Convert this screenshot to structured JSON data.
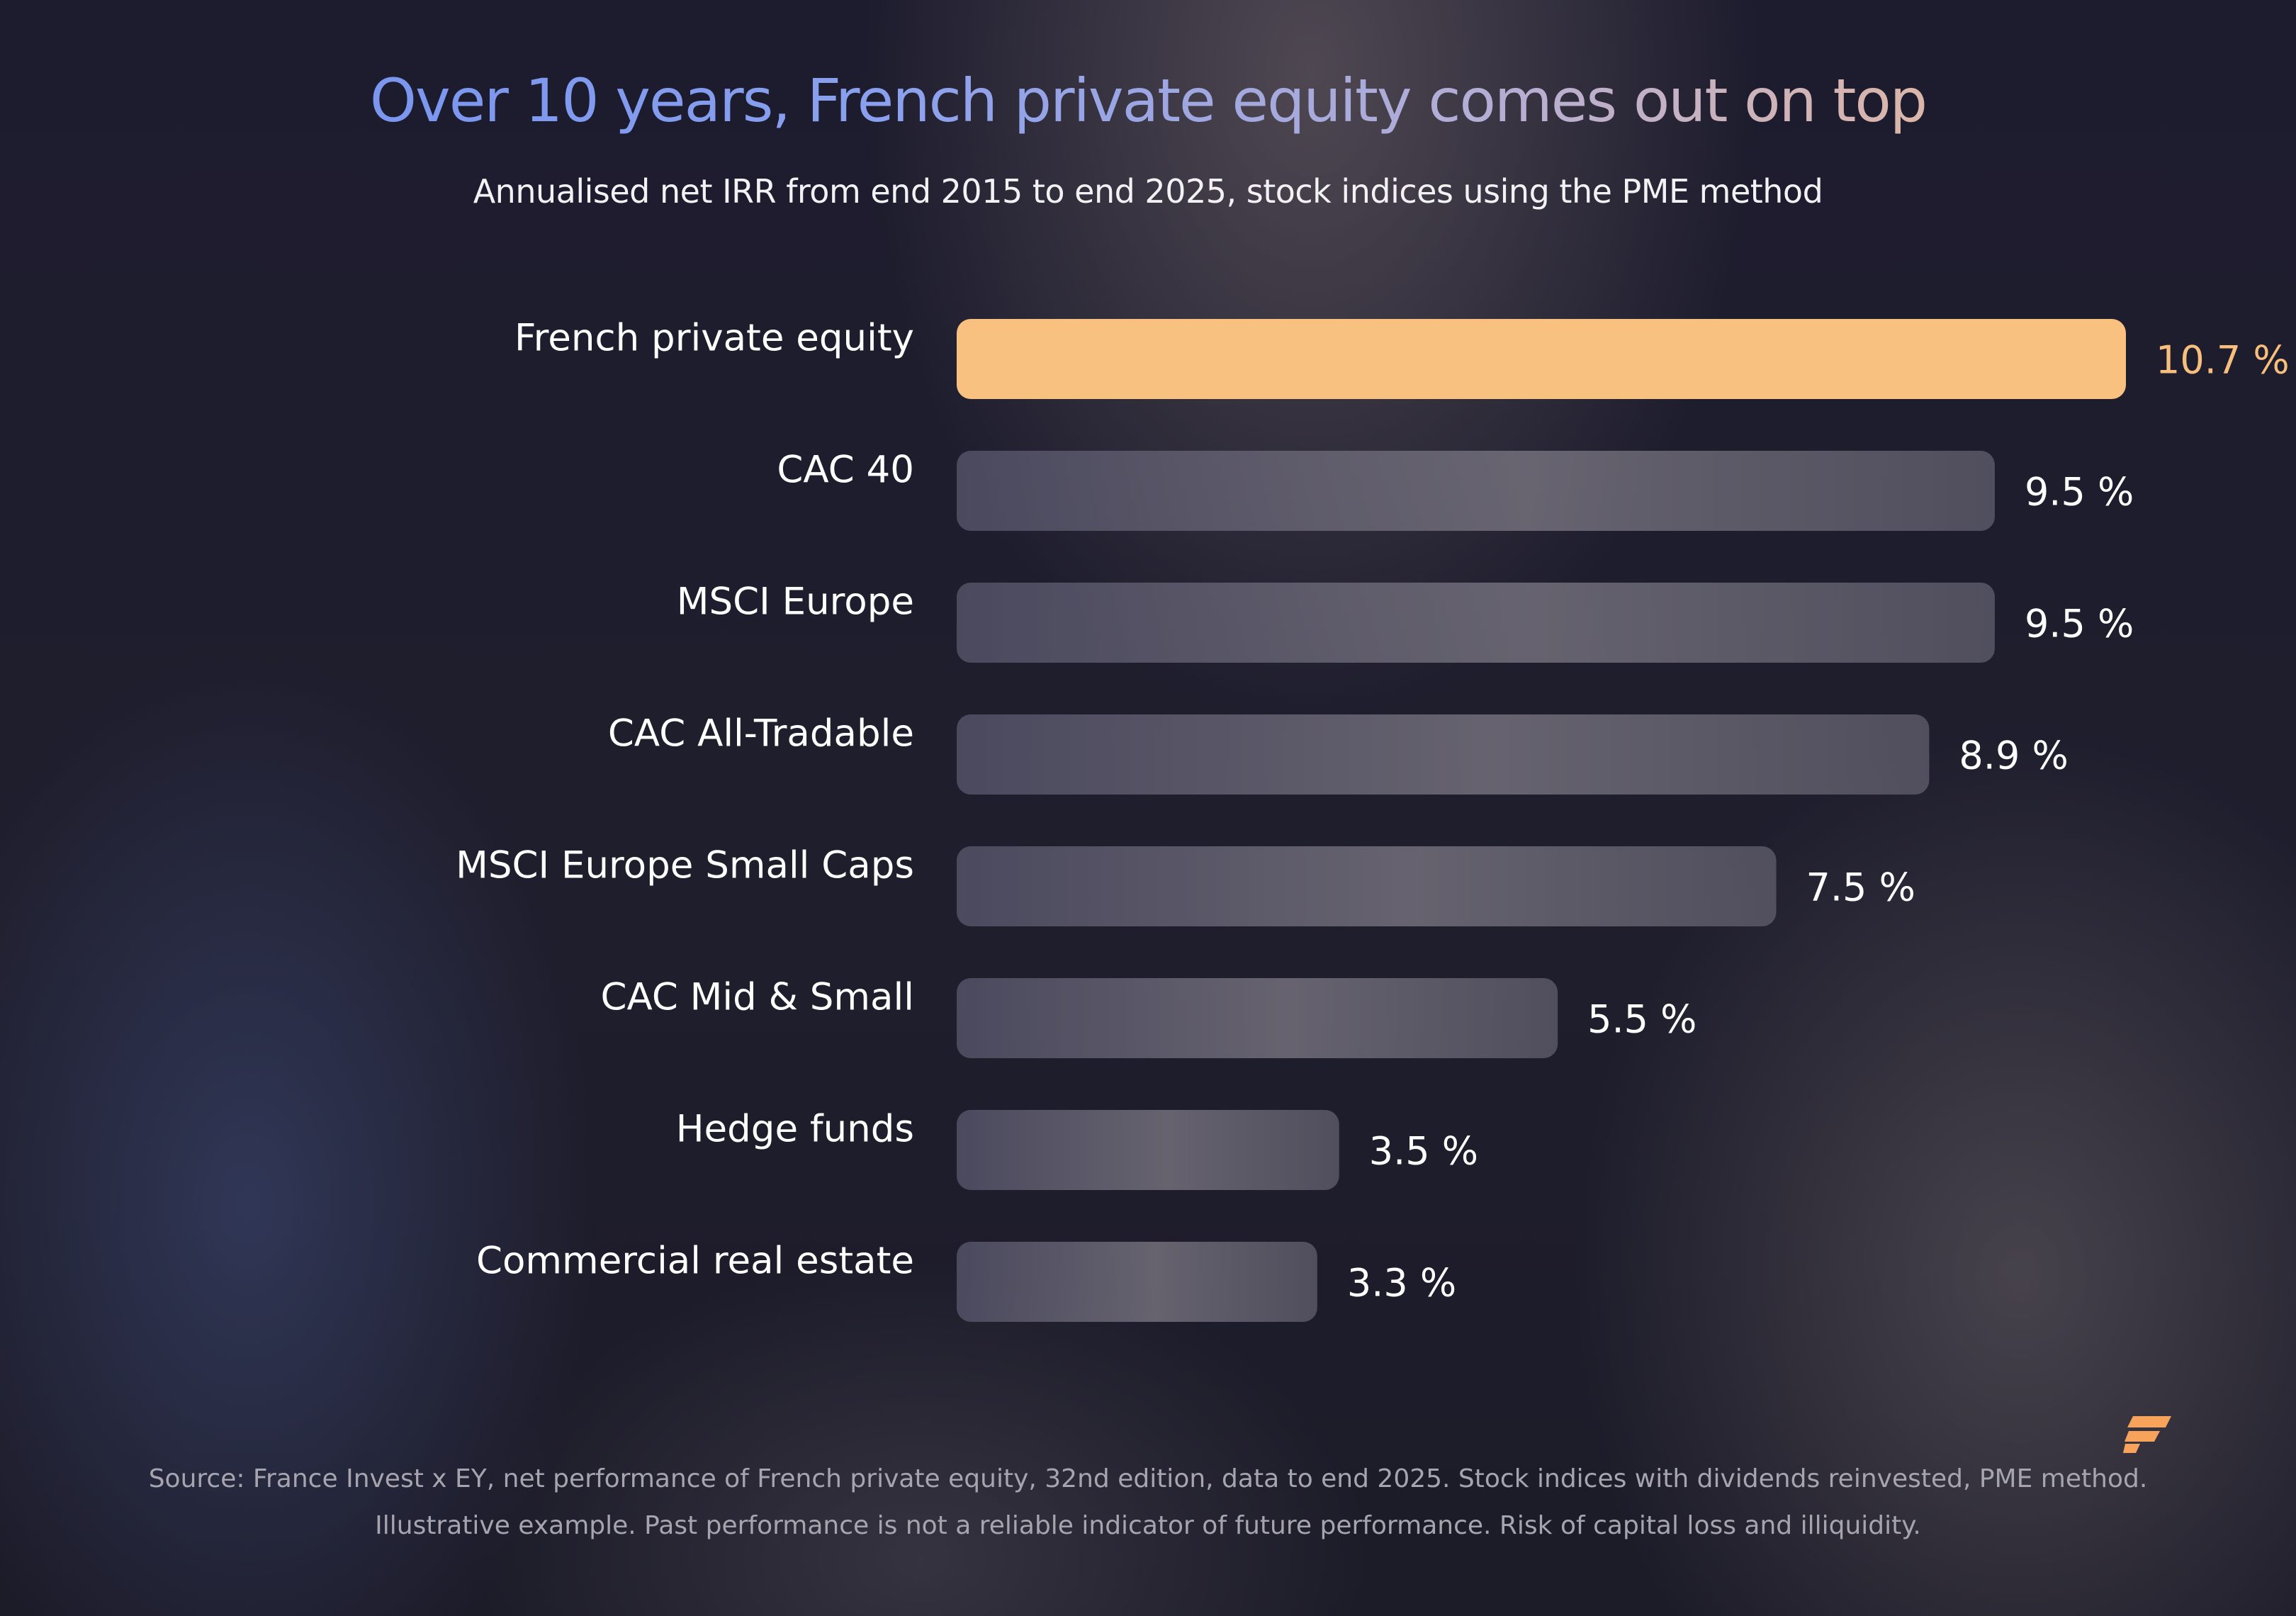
{
  "title": "Over 10 years, French private equity comes out on top",
  "subtitle": "Annualised net IRR from end 2015 to end 2025, stock indices using the PME method",
  "source": {
    "line1": "Source: France Invest x EY, net performance of French private equity, 32nd edition, data to end 2025. Stock indices with dividends reinvested, PME method.",
    "line2": "Illustrative example. Past performance is not a reliable indicator of future performance. Risk of capital loss and illiquidity."
  },
  "logo": {
    "icon": "brand-logo-icon",
    "color": "#f7a35c"
  },
  "colors": {
    "highlight_bar": "#f9c17f",
    "highlight_text": "#f7be7e",
    "bar": "#6a6674",
    "text": "#ffffff"
  },
  "chart_data": {
    "type": "bar",
    "orientation": "horizontal",
    "title": "Over 10 years, French private equity comes out on top",
    "subtitle": "Annualised net IRR from end 2015 to end 2025, stock indices using the PME method",
    "categories": [
      "French private equity",
      "CAC 40",
      "MSCI Europe",
      "CAC All-Tradable",
      "MSCI Europe Small Caps",
      "CAC Mid & Small",
      "Hedge funds",
      "Commercial real estate"
    ],
    "values": [
      10.7,
      9.5,
      9.5,
      8.9,
      7.5,
      5.5,
      3.5,
      3.3
    ],
    "value_labels": [
      "10.7 %",
      "9.5 %",
      "9.5 %",
      "8.9 %",
      "7.5 %",
      "5.5 %",
      "3.5 %",
      "3.3 %"
    ],
    "unit": "%",
    "highlight_index": 0,
    "xlim": [
      0,
      10.7
    ],
    "grid": false,
    "legend": "none"
  }
}
